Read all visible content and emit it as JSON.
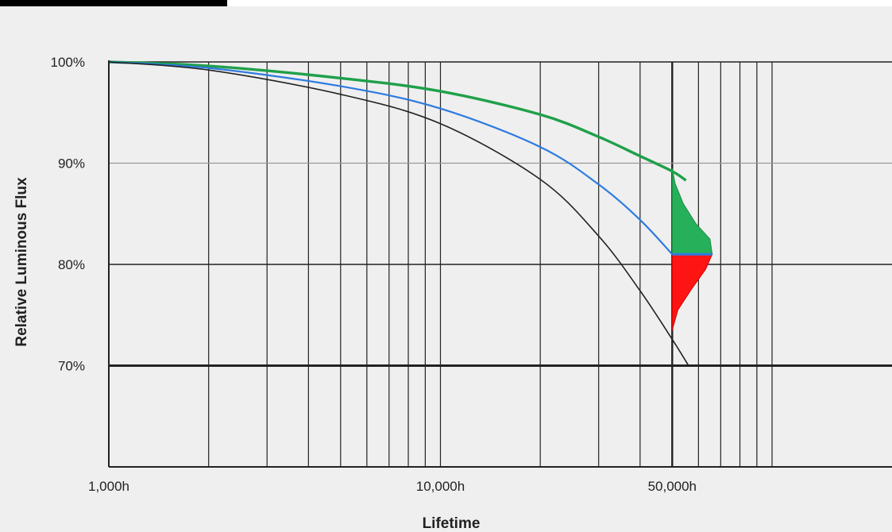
{
  "chart_data": {
    "type": "line",
    "xlabel": "Lifetime",
    "ylabel": "Relative Luminous Flux",
    "x_scale": "log",
    "xlim": [
      1000,
      230000
    ],
    "ylim": [
      60,
      100
    ],
    "x_ticks": [
      {
        "value": 1000,
        "label": "1,000h"
      },
      {
        "value": 10000,
        "label": "10,000h"
      },
      {
        "value": 50000,
        "label": "50,000h"
      }
    ],
    "y_ticks": [
      {
        "value": 100,
        "label": "100%"
      },
      {
        "value": 90,
        "label": "90%"
      },
      {
        "value": 80,
        "label": "80%"
      },
      {
        "value": 70,
        "label": "70%"
      }
    ],
    "x_gridlines": [
      1000,
      2000,
      3000,
      4000,
      5000,
      6000,
      7000,
      8000,
      9000,
      10000,
      20000,
      30000,
      40000,
      50000,
      60000,
      70000,
      80000,
      90000,
      100000
    ],
    "series": [
      {
        "color": "#1fa04a",
        "x": [
          1000,
          2000,
          5000,
          10000,
          20000,
          30000,
          40000,
          50000,
          55000
        ],
        "y": [
          100,
          99.6,
          98.4,
          97.1,
          94.8,
          92.6,
          90.7,
          89.2,
          88.3
        ]
      },
      {
        "color": "#2d7be0",
        "x": [
          1000,
          2000,
          5000,
          10000,
          20000,
          30000,
          40000,
          50000
        ],
        "y": [
          100,
          99.4,
          97.6,
          95.4,
          91.6,
          87.9,
          84.4,
          81.0
        ]
      },
      {
        "color": "#222222",
        "x": [
          1000,
          2000,
          5000,
          10000,
          20000,
          30000,
          40000,
          50000,
          56000
        ],
        "y": [
          100,
          99.2,
          96.8,
          93.9,
          88.4,
          82.8,
          77.4,
          72.6,
          70.0
        ]
      }
    ],
    "distribution": {
      "x_at": 50000,
      "split_at": 81,
      "upper_color": "#27b05a",
      "lower_color": "#ff1414",
      "divider_color": "#2d7be0",
      "profile": [
        {
          "flux": 89.5,
          "x": 50000
        },
        {
          "flux": 88.0,
          "x": 51000
        },
        {
          "flux": 86.0,
          "x": 54000
        },
        {
          "flux": 84.0,
          "x": 59000
        },
        {
          "flux": 82.5,
          "x": 65000
        },
        {
          "flux": 81.0,
          "x": 66000
        },
        {
          "flux": 79.5,
          "x": 63000
        },
        {
          "flux": 77.5,
          "x": 57000
        },
        {
          "flux": 75.5,
          "x": 52000
        },
        {
          "flux": 73.5,
          "x": 50000
        }
      ]
    }
  }
}
